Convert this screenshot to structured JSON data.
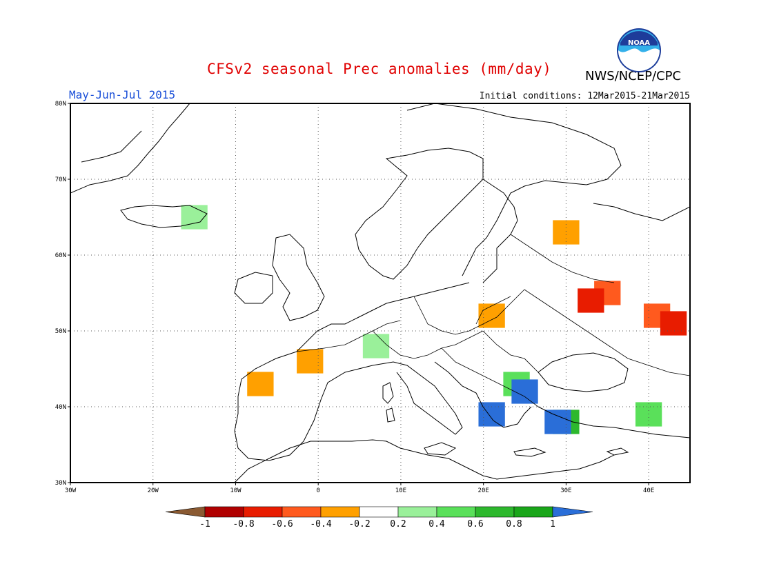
{
  "title": "CFSv2 seasonal Prec anomalies (mm/day)",
  "agency": "NWS/NCEP/CPC",
  "logo_text": "NOAA",
  "period": "May-Jun-Jul 2015",
  "initial_conditions": "Initial conditions: 12Mar2015-21Mar2015",
  "colors": {
    "brown": "#8a5a32",
    "darkred": "#b00000",
    "red": "#e81c00",
    "orangered": "#ff5a1e",
    "orange": "#ffa000",
    "white": "#ffffff",
    "lightgreen": "#9af09a",
    "green1": "#5ae05a",
    "green2": "#2db82d",
    "green3": "#1aa61a",
    "blue": "#2a6ed8"
  },
  "map": {
    "lon_range": [
      -30,
      45
    ],
    "lat_range": [
      30,
      80
    ],
    "lon_ticks": [
      {
        "value": -30,
        "label": "30W"
      },
      {
        "value": -20,
        "label": "20W"
      },
      {
        "value": -10,
        "label": "10W"
      },
      {
        "value": 0,
        "label": "0"
      },
      {
        "value": 10,
        "label": "10E"
      },
      {
        "value": 20,
        "label": "20E"
      },
      {
        "value": 30,
        "label": "30E"
      },
      {
        "value": 40,
        "label": "40E"
      }
    ],
    "lat_ticks": [
      {
        "value": 30,
        "label": "30N"
      },
      {
        "value": 40,
        "label": "40N"
      },
      {
        "value": 50,
        "label": "50N"
      },
      {
        "value": 60,
        "label": "60N"
      },
      {
        "value": 70,
        "label": "70N"
      },
      {
        "value": 80,
        "label": "80N"
      }
    ],
    "anomaly_patches": [
      {
        "lon": 35,
        "lat": 55,
        "value": -0.5
      },
      {
        "lon": 41,
        "lat": 52,
        "value": -0.5
      },
      {
        "lon": 33,
        "lat": 54,
        "value": -0.6
      },
      {
        "lon": 43,
        "lat": 51,
        "value": -0.6
      },
      {
        "lon": -1,
        "lat": 46,
        "value": -0.3
      },
      {
        "lon": -7,
        "lat": 43,
        "value": -0.3
      },
      {
        "lon": 21,
        "lat": 52,
        "value": -0.3
      },
      {
        "lon": 30,
        "lat": 63,
        "value": -0.3
      },
      {
        "lon": 24,
        "lat": 43,
        "value": 0.4
      },
      {
        "lon": 25,
        "lat": 42,
        "value": 1.0
      },
      {
        "lon": 21,
        "lat": 39,
        "value": 1.0
      },
      {
        "lon": 30,
        "lat": 38,
        "value": 0.6
      },
      {
        "lon": 29,
        "lat": 38,
        "value": 1.0
      },
      {
        "lon": 40,
        "lat": 39,
        "value": 0.4
      },
      {
        "lon": 7,
        "lat": 48,
        "value": 0.3
      },
      {
        "lon": -15,
        "lat": 65,
        "value": 0.3
      }
    ]
  },
  "colorbar": {
    "ticks": [
      "-1",
      "-0.8",
      "-0.6",
      "-0.4",
      "-0.2",
      "0.2",
      "0.4",
      "0.6",
      "0.8",
      "1"
    ],
    "bins": [
      "darkred",
      "red",
      "orangered",
      "orange",
      "white",
      "lightgreen",
      "green1",
      "green2",
      "green3"
    ],
    "left_extension": "brown",
    "right_extension": "blue"
  }
}
